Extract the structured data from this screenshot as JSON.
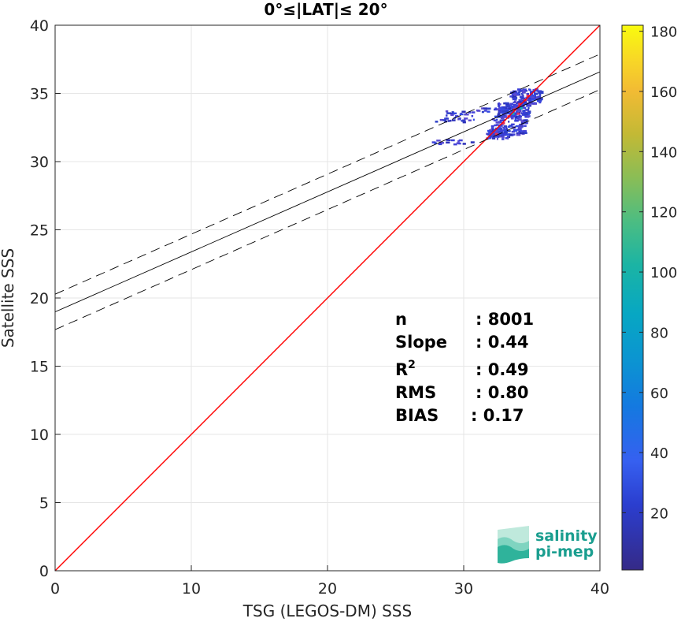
{
  "chart_data": {
    "type": "scatter",
    "title": "0°≤|LAT|≤ 20°",
    "xlabel": "TSG (LEGOS-DM) SSS",
    "ylabel": "Satellite SSS",
    "xlim": [
      0,
      40
    ],
    "ylim": [
      0,
      40
    ],
    "xticks": [
      "0",
      "10",
      "20",
      "30",
      "40"
    ],
    "yticks": [
      "0",
      "5",
      "10",
      "15",
      "20",
      "25",
      "30",
      "35",
      "40"
    ],
    "grid": true,
    "identity_line": {
      "color": "#ff0000",
      "from": [
        0,
        0
      ],
      "to": [
        40,
        40
      ]
    },
    "fit_line": {
      "intercept": 18.98,
      "slope": 0.44,
      "band": 1.3,
      "color": "#000000"
    },
    "density_clusters": [
      {
        "x": [
          27.3,
          30.6
        ],
        "y": [
          31.3,
          31.7
        ],
        "count": 4
      },
      {
        "x": [
          27.6,
          31.0
        ],
        "y": [
          32.9,
          33.3
        ],
        "count": 5
      },
      {
        "x": [
          28.4,
          31.2
        ],
        "y": [
          33.4,
          33.8
        ],
        "count": 4
      },
      {
        "x": [
          30.8,
          33.6
        ],
        "y": [
          33.7,
          34.0
        ],
        "count": 6
      },
      {
        "x": [
          32.0,
          34.5
        ],
        "y": [
          32.0,
          33.4
        ],
        "count": 25
      },
      {
        "x": [
          32.4,
          34.8
        ],
        "y": [
          33.3,
          34.4
        ],
        "count": 35
      },
      {
        "x": [
          33.3,
          35.6
        ],
        "y": [
          34.3,
          35.4
        ],
        "count": 30
      },
      {
        "x": [
          31.6,
          33.2
        ],
        "y": [
          31.7,
          32.5
        ],
        "count": 18
      }
    ],
    "colorbar": {
      "range": [
        1,
        182
      ],
      "ticks": [
        "20",
        "40",
        "60",
        "80",
        "100",
        "120",
        "140",
        "160",
        "180"
      ],
      "colormap": "parula"
    },
    "stats": [
      {
        "label": "n",
        "value": ": 8001"
      },
      {
        "label": "Slope",
        "value": ": 0.44"
      },
      {
        "label": "R",
        "sup": "2",
        "value": ": 0.49"
      },
      {
        "label": "RMS",
        "value": ": 0.80"
      },
      {
        "label": "BIAS",
        "value": ": 0.17"
      }
    ]
  },
  "logo": {
    "line1": "salinity",
    "line2": "pi-mep"
  }
}
